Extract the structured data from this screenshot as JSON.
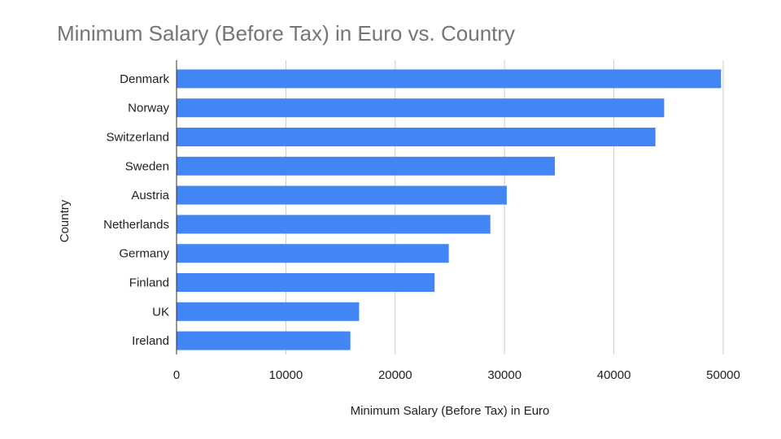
{
  "chart_data": {
    "type": "bar",
    "orientation": "horizontal",
    "title": "Minimum Salary (Before Tax) in Euro vs. Country",
    "xlabel": "Minimum Salary (Before Tax) in Euro",
    "ylabel": "Country",
    "categories": [
      "Denmark",
      "Norway",
      "Switzerland",
      "Sweden",
      "Austria",
      "Netherlands",
      "Germany",
      "Finland",
      "UK",
      "Ireland"
    ],
    "values": [
      49800,
      44600,
      43800,
      34600,
      30200,
      28700,
      24900,
      23600,
      16700,
      15900
    ],
    "xlim": [
      0,
      50000
    ],
    "xticks": [
      "0",
      "10000",
      "20000",
      "30000",
      "40000",
      "50000"
    ],
    "grid": true,
    "legend": "none",
    "bar_color": "#4285f4"
  }
}
